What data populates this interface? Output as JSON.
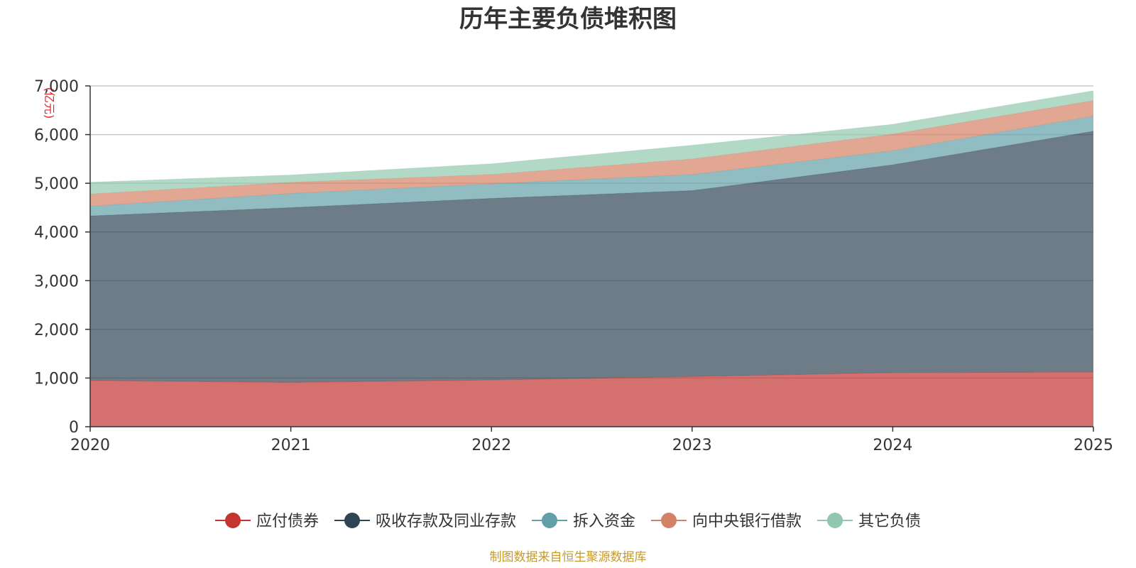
{
  "chart_data": {
    "type": "area",
    "stacked": true,
    "title": "历年主要负债堆积图",
    "ylabel": "(亿元)",
    "xlabel": "",
    "x": [
      "2020",
      "2021",
      "2022",
      "2023",
      "2024",
      "2025"
    ],
    "ylim": [
      0,
      7000
    ],
    "yticks": [
      0,
      1000,
      2000,
      3000,
      4000,
      5000,
      6000,
      7000
    ],
    "ytick_labels": [
      "0",
      "1,000",
      "2,000",
      "3,000",
      "4,000",
      "5,000",
      "6,000",
      "7,000"
    ],
    "grid": true,
    "legend_position": "bottom",
    "series": [
      {
        "name": "应付债券",
        "color": "#c23531",
        "values": [
          950,
          910,
          960,
          1030,
          1110,
          1120
        ]
      },
      {
        "name": "吸收存款及同业存款",
        "color": "#2f4554",
        "values": [
          3380,
          3590,
          3730,
          3820,
          4270,
          4950
        ]
      },
      {
        "name": "拆入资金",
        "color": "#61a0a8",
        "values": [
          200,
          290,
          300,
          330,
          290,
          310
        ]
      },
      {
        "name": "向中央银行借款",
        "color": "#d48265",
        "values": [
          250,
          230,
          190,
          320,
          340,
          320
        ]
      },
      {
        "name": "其它负债",
        "color": "#91c7ae",
        "values": [
          240,
          150,
          220,
          280,
          200,
          200
        ]
      }
    ],
    "source_note": "制图数据来自恒生聚源数据库"
  }
}
